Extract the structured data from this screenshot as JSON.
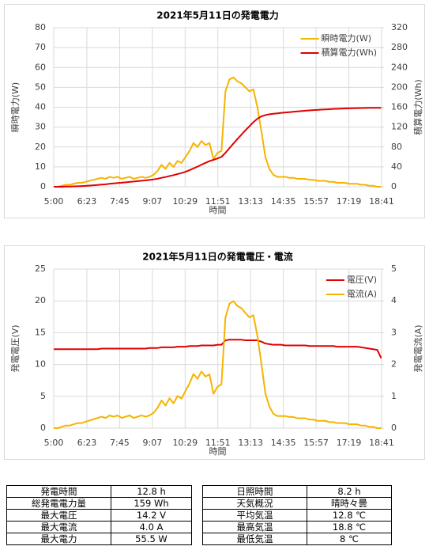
{
  "chart_data": [
    {
      "type": "line",
      "title": "2021年5月11日の発電電力",
      "xlabel": "時間",
      "ylabel": "瞬時電力(W)",
      "y2label": "積算電力(Wh)",
      "x": [
        300,
        310,
        320,
        330,
        340,
        350,
        360,
        370,
        380,
        390,
        400,
        410,
        420,
        430,
        440,
        450,
        460,
        470,
        480,
        490,
        500,
        510,
        520,
        530,
        540,
        550,
        560,
        570,
        580,
        590,
        600,
        610,
        620,
        630,
        640,
        650,
        660,
        670,
        680,
        690,
        700,
        710,
        720,
        730,
        740,
        750,
        760,
        770,
        780,
        790,
        800,
        810,
        820,
        830,
        840,
        850,
        860,
        870,
        880,
        890,
        900,
        910,
        920,
        930,
        940,
        950,
        960,
        970,
        980,
        990,
        1000,
        1010,
        1020,
        1030,
        1040,
        1050,
        1060,
        1070,
        1080,
        1090,
        1100,
        1110,
        1120
      ],
      "xlim": [
        300,
        1121
      ],
      "xticks": [
        {
          "value": 300,
          "label": "5:00"
        },
        {
          "value": 383,
          "label": "6:23"
        },
        {
          "value": 465,
          "label": "7:45"
        },
        {
          "value": 547,
          "label": "9:07"
        },
        {
          "value": 629,
          "label": "10:29"
        },
        {
          "value": 711,
          "label": "11:51"
        },
        {
          "value": 793,
          "label": "13:13"
        },
        {
          "value": 875,
          "label": "14:35"
        },
        {
          "value": 957,
          "label": "15:57"
        },
        {
          "value": 1039,
          "label": "17:19"
        },
        {
          "value": 1121,
          "label": "18:41"
        }
      ],
      "ylim": [
        0,
        80
      ],
      "yticks": [
        0,
        10,
        20,
        30,
        40,
        50,
        60,
        70,
        80
      ],
      "y2lim": [
        0,
        320
      ],
      "y2ticks": [
        0,
        40,
        80,
        120,
        160,
        200,
        240,
        280,
        320
      ],
      "grid": true,
      "legend": "upper right",
      "series": [
        {
          "name": "瞬時電力(W)",
          "color": "#f5b400",
          "values": [
            0,
            0,
            0.5,
            1,
            1,
            1.5,
            2,
            2,
            2.5,
            3,
            3.5,
            4,
            4.5,
            4,
            5,
            4.5,
            5,
            4,
            4.5,
            5,
            4,
            4.5,
            5,
            4.5,
            5,
            6,
            8,
            11,
            9,
            12,
            10,
            13,
            12,
            15,
            18,
            22,
            20,
            23,
            21,
            22,
            14,
            17,
            18,
            48,
            54,
            55,
            53,
            52,
            50,
            48,
            49,
            40,
            28,
            15,
            9,
            6,
            5,
            5,
            5,
            4.5,
            4.5,
            4,
            4,
            4,
            3.5,
            3.5,
            3,
            3,
            3,
            2.5,
            2.5,
            2,
            2,
            2,
            1.5,
            1.5,
            1.5,
            1,
            1,
            0.5,
            0.5,
            0,
            0
          ]
        },
        {
          "name": "積算電力(Wh)",
          "color": "#e00000",
          "axis": "y2",
          "values": [
            0,
            0,
            0.1,
            0.3,
            0.4,
            0.7,
            1.0,
            1.4,
            1.8,
            2.3,
            2.9,
            3.6,
            4.4,
            5.0,
            5.9,
            6.7,
            7.5,
            8.2,
            9.0,
            9.8,
            10.5,
            11.3,
            12.1,
            12.9,
            13.8,
            14.8,
            16.2,
            18.0,
            19.6,
            21.6,
            23.4,
            25.6,
            27.6,
            30.2,
            33.3,
            37.0,
            40.4,
            44.4,
            48.0,
            51.7,
            54.1,
            57.0,
            60.1,
            68.3,
            77.6,
            87.0,
            96.0,
            104.9,
            113.5,
            121.7,
            130.0,
            136.9,
            141.6,
            144.2,
            145.8,
            146.8,
            147.7,
            148.6,
            149.4,
            150.1,
            150.9,
            151.6,
            152.3,
            153.0,
            153.6,
            154.2,
            154.7,
            155.2,
            155.7,
            156.1,
            156.6,
            156.9,
            157.2,
            157.6,
            157.8,
            158.1,
            158.3,
            158.5,
            158.7,
            158.8,
            158.9,
            158.9,
            158.9
          ]
        }
      ]
    },
    {
      "type": "line",
      "title": "2021年5月11日の発電電圧・電流",
      "xlabel": "時間",
      "ylabel": "発電電圧(V)",
      "y2label": "発電電流(A)",
      "x": [
        300,
        310,
        320,
        330,
        340,
        350,
        360,
        370,
        380,
        390,
        400,
        410,
        420,
        430,
        440,
        450,
        460,
        470,
        480,
        490,
        500,
        510,
        520,
        530,
        540,
        550,
        560,
        570,
        580,
        590,
        600,
        610,
        620,
        630,
        640,
        650,
        660,
        670,
        680,
        690,
        700,
        710,
        720,
        730,
        740,
        750,
        760,
        770,
        780,
        790,
        800,
        810,
        820,
        830,
        840,
        850,
        860,
        870,
        880,
        890,
        900,
        910,
        920,
        930,
        940,
        950,
        960,
        970,
        980,
        990,
        1000,
        1010,
        1020,
        1030,
        1040,
        1050,
        1060,
        1070,
        1080,
        1090,
        1100,
        1110,
        1120
      ],
      "xlim": [
        300,
        1121
      ],
      "xticks": [
        {
          "value": 300,
          "label": "5:00"
        },
        {
          "value": 383,
          "label": "6:23"
        },
        {
          "value": 465,
          "label": "7:45"
        },
        {
          "value": 547,
          "label": "9:07"
        },
        {
          "value": 629,
          "label": "10:29"
        },
        {
          "value": 711,
          "label": "11:51"
        },
        {
          "value": 793,
          "label": "13:13"
        },
        {
          "value": 875,
          "label": "14:35"
        },
        {
          "value": 957,
          "label": "15:57"
        },
        {
          "value": 1039,
          "label": "17:19"
        },
        {
          "value": 1121,
          "label": "18:41"
        }
      ],
      "ylim": [
        0,
        25
      ],
      "yticks": [
        0,
        5,
        10,
        15,
        20,
        25
      ],
      "y2lim": [
        0,
        5
      ],
      "y2ticks": [
        0,
        1,
        2,
        3,
        4,
        5
      ],
      "grid": true,
      "legend": "upper right",
      "series": [
        {
          "name": "電圧(V)",
          "color": "#e00000",
          "values": [
            12.4,
            12.4,
            12.4,
            12.4,
            12.4,
            12.4,
            12.4,
            12.4,
            12.4,
            12.4,
            12.4,
            12.4,
            12.5,
            12.5,
            12.5,
            12.5,
            12.5,
            12.5,
            12.5,
            12.5,
            12.5,
            12.5,
            12.5,
            12.5,
            12.6,
            12.6,
            12.6,
            12.7,
            12.7,
            12.7,
            12.7,
            12.8,
            12.8,
            12.8,
            12.9,
            12.9,
            12.9,
            13.0,
            13.0,
            13.0,
            13.0,
            13.1,
            13.1,
            13.8,
            13.9,
            13.9,
            13.9,
            13.9,
            13.8,
            13.8,
            13.8,
            13.8,
            13.6,
            13.3,
            13.2,
            13.1,
            13.1,
            13.1,
            13.0,
            13.0,
            13.0,
            13.0,
            13.0,
            13.0,
            12.9,
            12.9,
            12.9,
            12.9,
            12.9,
            12.9,
            12.9,
            12.8,
            12.8,
            12.8,
            12.8,
            12.8,
            12.8,
            12.7,
            12.6,
            12.5,
            12.4,
            12.3,
            11.0
          ]
        },
        {
          "name": "電流(A)",
          "color": "#f5b400",
          "axis": "y2",
          "values": [
            0,
            0,
            0.04,
            0.08,
            0.08,
            0.12,
            0.16,
            0.16,
            0.2,
            0.24,
            0.28,
            0.32,
            0.36,
            0.32,
            0.4,
            0.36,
            0.4,
            0.32,
            0.36,
            0.4,
            0.32,
            0.36,
            0.4,
            0.36,
            0.4,
            0.48,
            0.64,
            0.87,
            0.71,
            0.94,
            0.78,
            1.01,
            0.93,
            1.17,
            1.4,
            1.7,
            1.55,
            1.78,
            1.62,
            1.69,
            1.08,
            1.3,
            1.38,
            3.48,
            3.91,
            3.99,
            3.84,
            3.77,
            3.62,
            3.48,
            3.55,
            2.9,
            2.03,
            1.09,
            0.68,
            0.45,
            0.38,
            0.38,
            0.38,
            0.35,
            0.35,
            0.31,
            0.31,
            0.31,
            0.27,
            0.27,
            0.23,
            0.23,
            0.23,
            0.19,
            0.19,
            0.16,
            0.16,
            0.16,
            0.12,
            0.12,
            0.12,
            0.08,
            0.08,
            0.04,
            0.04,
            0,
            0
          ]
        }
      ]
    }
  ],
  "table": {
    "rows": [
      [
        "発電時間",
        "12.8 h",
        "日照時間",
        "8.2 h"
      ],
      [
        "総発電電力量",
        "159 Wh",
        "天気概況",
        "晴時々曇"
      ],
      [
        "最大電圧",
        "14.2 V",
        "平均気温",
        "12.8 ℃"
      ],
      [
        "最大電流",
        "4.0 A",
        "最高気温",
        "18.8 ℃"
      ],
      [
        "最大電力",
        "55.5 W",
        "最低気温",
        "8 ℃"
      ]
    ]
  }
}
